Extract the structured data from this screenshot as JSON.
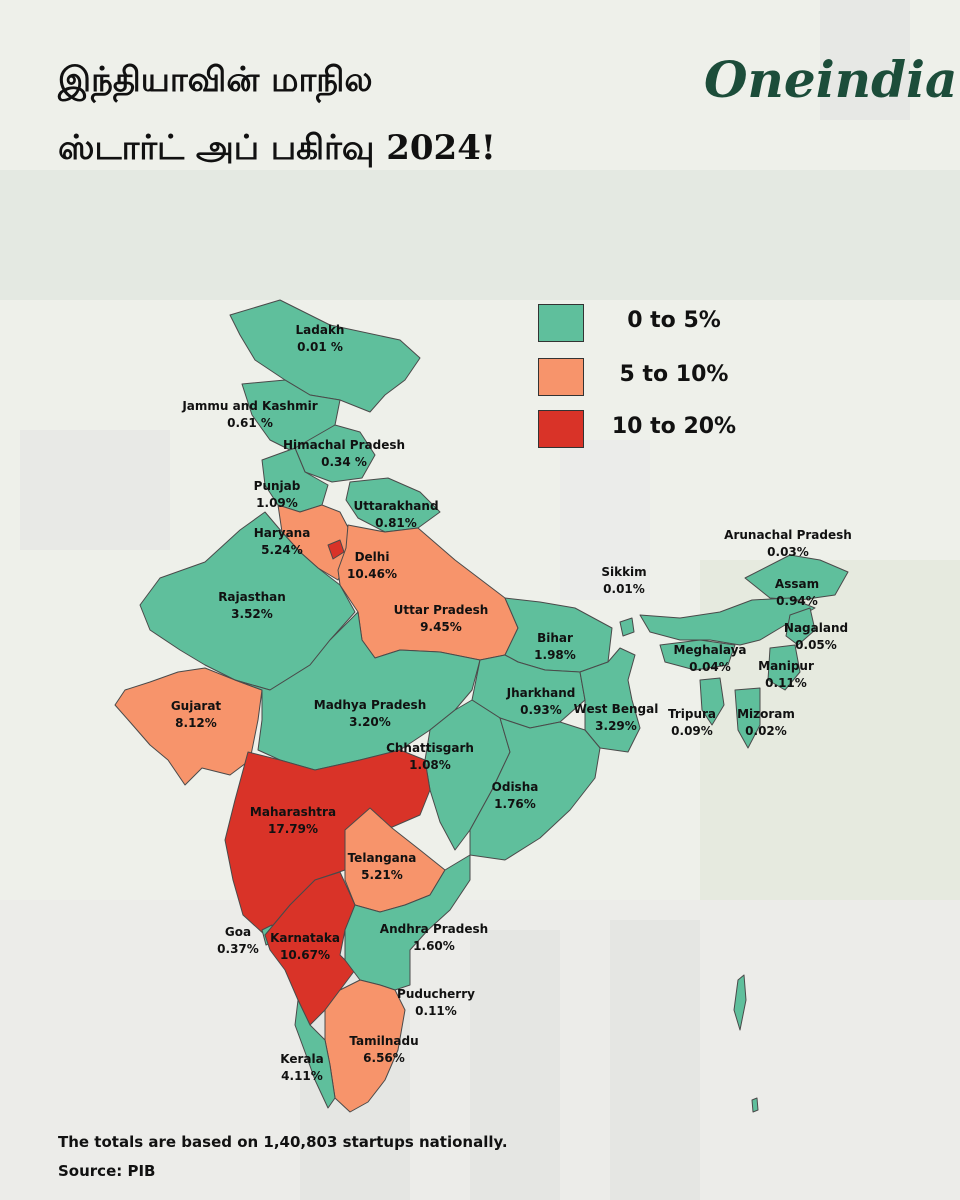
{
  "title": {
    "line1": "இந்தியாவின் மாநில",
    "line2": "ஸ்டார்ட் அப் பகிர்வு 2024!"
  },
  "brand": "Oneindia",
  "legend": [
    {
      "label": "0 to 5%",
      "color": "#5fbf9c"
    },
    {
      "label": "5 to 10%",
      "color": "#f7946b"
    },
    {
      "label": "10 to 20%",
      "color": "#d93328"
    }
  ],
  "regions": [
    {
      "id": "ladakh",
      "name": "Ladakh",
      "value": "0.01 %",
      "color": "#5fbf9c"
    },
    {
      "id": "jk",
      "name": "Jammu and Kashmir",
      "value": "0.61 %",
      "color": "#5fbf9c"
    },
    {
      "id": "hp",
      "name": "Himachal Pradesh",
      "value": "0.34 %",
      "color": "#5fbf9c"
    },
    {
      "id": "punjab",
      "name": "Punjab",
      "value": "1.09%",
      "color": "#5fbf9c"
    },
    {
      "id": "uttarakhand",
      "name": "Uttarakhand",
      "value": "0.81%",
      "color": "#5fbf9c"
    },
    {
      "id": "haryana",
      "name": "Haryana",
      "value": "5.24%",
      "color": "#f7946b"
    },
    {
      "id": "delhi",
      "name": "Delhi",
      "value": "10.46%",
      "color": "#d93328"
    },
    {
      "id": "rajasthan",
      "name": "Rajasthan",
      "value": "3.52%",
      "color": "#5fbf9c"
    },
    {
      "id": "up",
      "name": "Uttar Pradesh",
      "value": "9.45%",
      "color": "#f7946b"
    },
    {
      "id": "bihar",
      "name": "Bihar",
      "value": "1.98%",
      "color": "#5fbf9c"
    },
    {
      "id": "gujarat",
      "name": "Gujarat",
      "value": "8.12%",
      "color": "#f7946b"
    },
    {
      "id": "mp",
      "name": "Madhya Pradesh",
      "value": "3.20%",
      "color": "#5fbf9c"
    },
    {
      "id": "jharkhand",
      "name": "Jharkhand",
      "value": "0.93%",
      "color": "#5fbf9c"
    },
    {
      "id": "wb",
      "name": "West Bengal",
      "value": "3.29%",
      "color": "#5fbf9c"
    },
    {
      "id": "chhattisgarh",
      "name": "Chhattisgarh",
      "value": "1.08%",
      "color": "#5fbf9c"
    },
    {
      "id": "odisha",
      "name": "Odisha",
      "value": "1.76%",
      "color": "#5fbf9c"
    },
    {
      "id": "maharashtra",
      "name": "Maharashtra",
      "value": "17.79%",
      "color": "#d93328"
    },
    {
      "id": "telangana",
      "name": "Telangana",
      "value": "5.21%",
      "color": "#f7946b"
    },
    {
      "id": "goa",
      "name": "Goa",
      "value": "0.37%",
      "color": "#5fbf9c"
    },
    {
      "id": "karnataka",
      "name": "Karnataka",
      "value": "10.67%",
      "color": "#d93328"
    },
    {
      "id": "ap",
      "name": "Andhra Pradesh",
      "value": "1.60%",
      "color": "#5fbf9c"
    },
    {
      "id": "puducherry",
      "name": "Puducherry",
      "value": "0.11%",
      "color": "#5fbf9c"
    },
    {
      "id": "tamilnadu",
      "name": "Tamilnadu",
      "value": "6.56%",
      "color": "#f7946b"
    },
    {
      "id": "kerala",
      "name": "Kerala",
      "value": "4.11%",
      "color": "#5fbf9c"
    },
    {
      "id": "sikkim",
      "name": "Sikkim",
      "value": "0.01%",
      "color": "#5fbf9c"
    },
    {
      "id": "arunachal",
      "name": "Arunachal Pradesh",
      "value": "0.03%",
      "color": "#5fbf9c"
    },
    {
      "id": "assam",
      "name": "Assam",
      "value": "0.94%",
      "color": "#5fbf9c"
    },
    {
      "id": "nagaland",
      "name": "Nagaland",
      "value": "0.05%",
      "color": "#5fbf9c"
    },
    {
      "id": "meghalaya",
      "name": "Meghalaya",
      "value": "0.04%",
      "color": "#5fbf9c"
    },
    {
      "id": "manipur",
      "name": "Manipur",
      "value": "0.11%",
      "color": "#5fbf9c"
    },
    {
      "id": "tripura",
      "name": "Tripura",
      "value": "0.09%",
      "color": "#5fbf9c"
    },
    {
      "id": "mizoram",
      "name": "Mizoram",
      "value": "0.02%",
      "color": "#5fbf9c"
    }
  ],
  "footer": {
    "note": "The totals are based on 1,40,803 startups nationally.",
    "source": "Source: PIB"
  },
  "colors": {
    "border": "#4a4a4a",
    "brand": "#1c4d3a"
  }
}
